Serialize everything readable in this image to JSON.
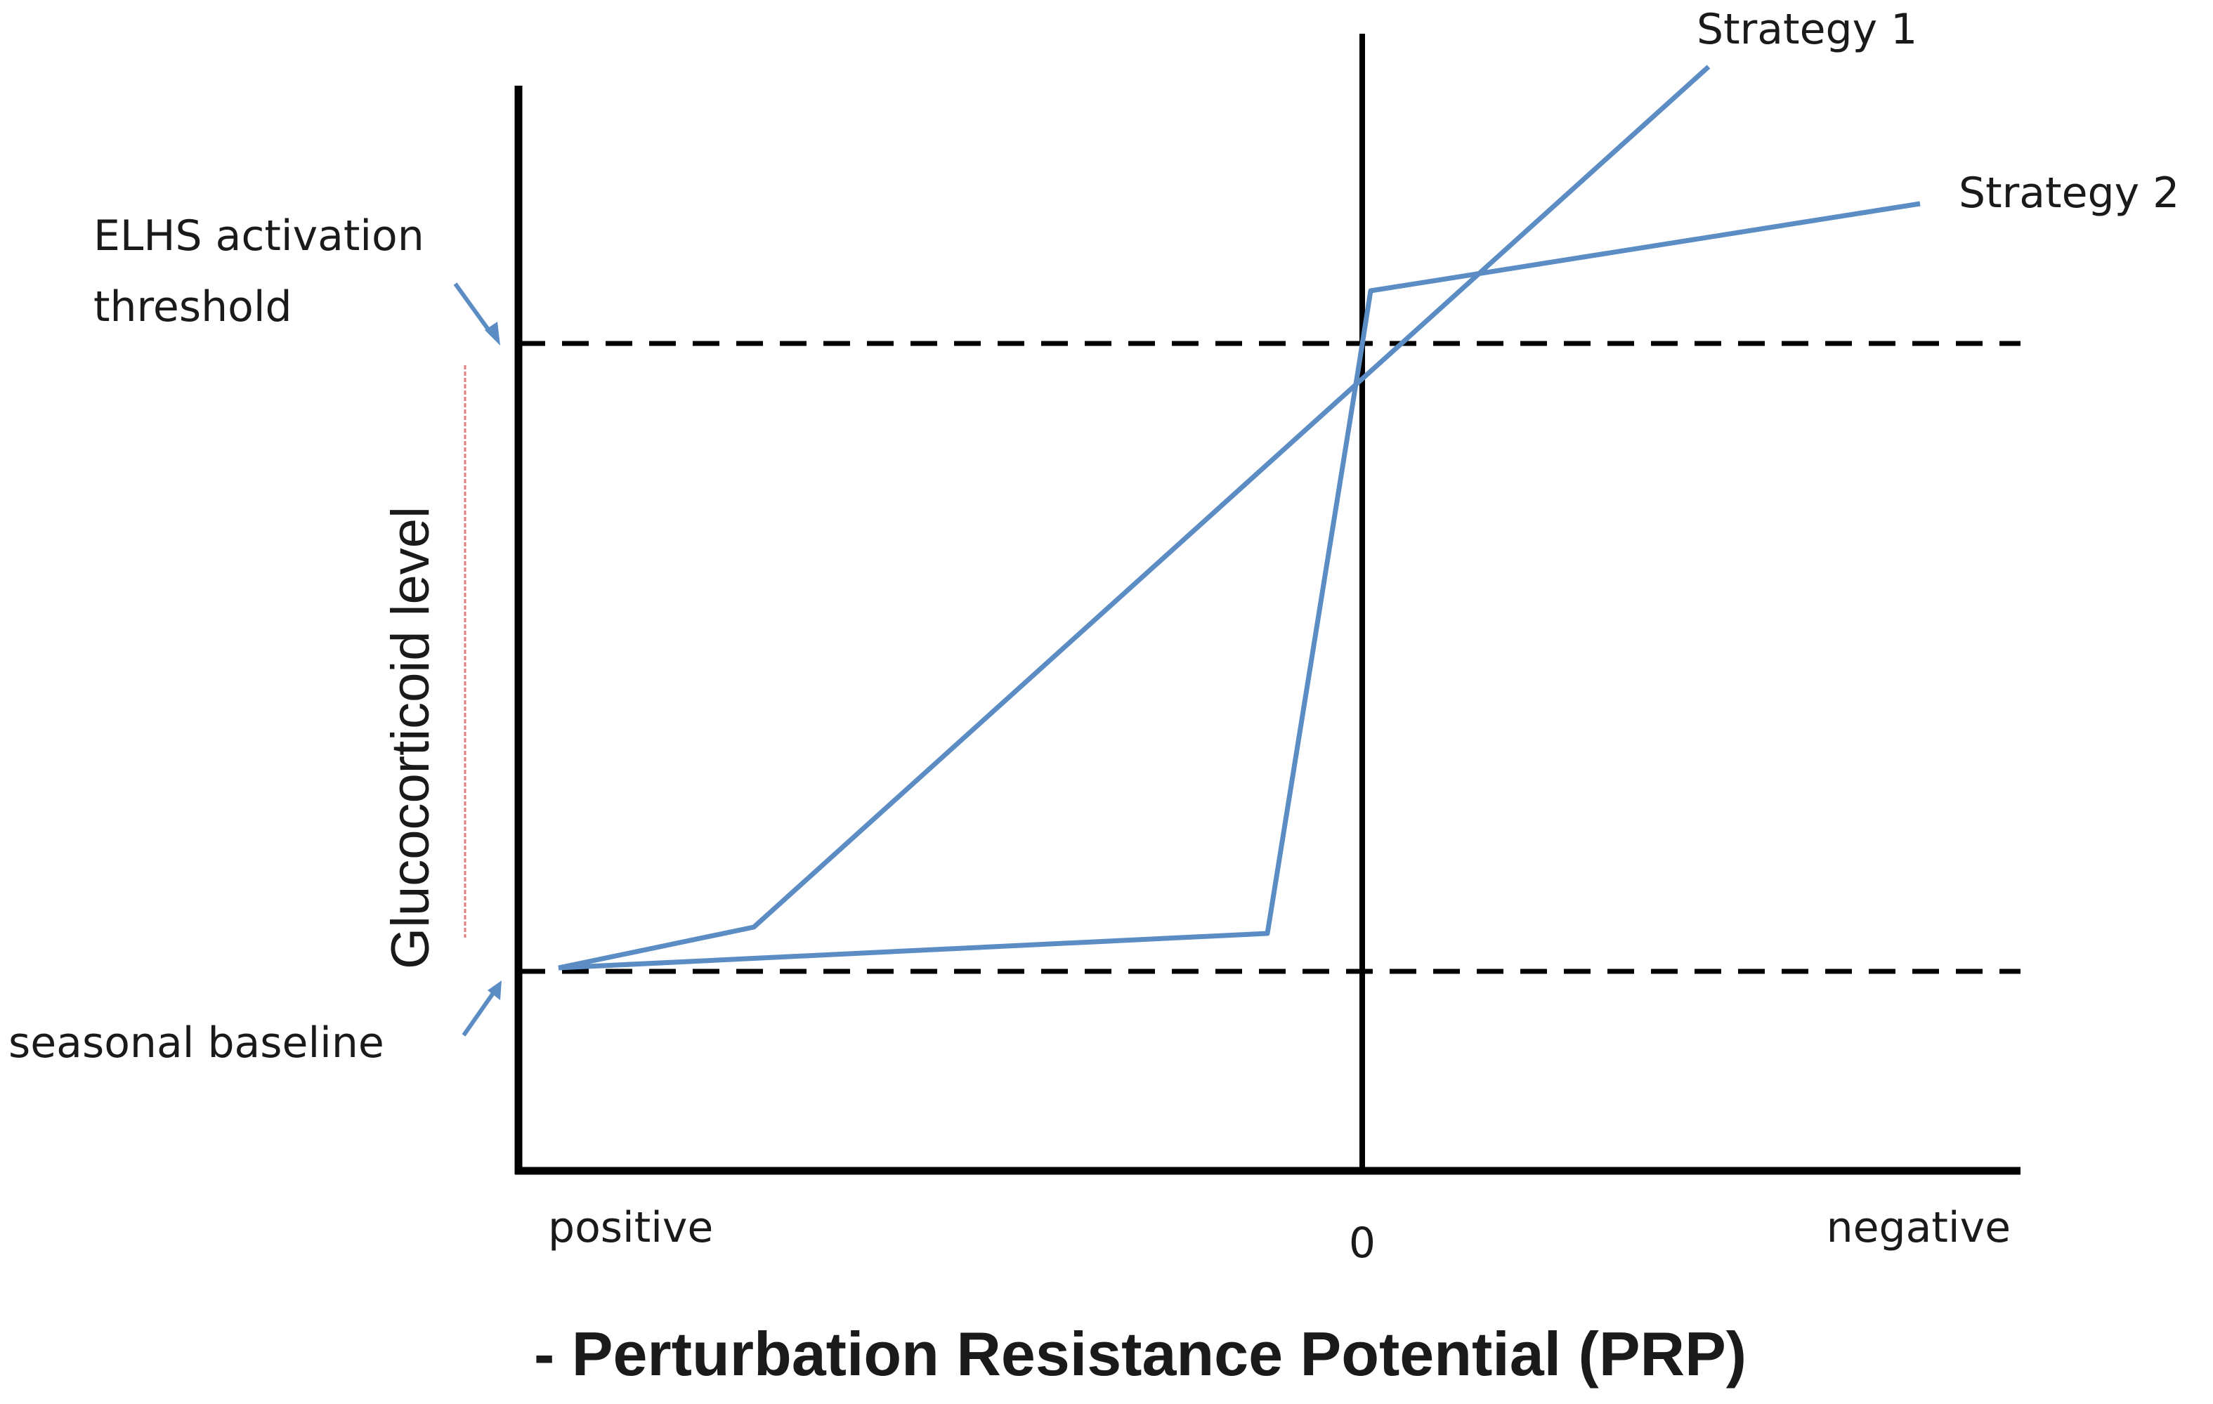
{
  "figure": {
    "y_axis_label": "Glucocorticoid level",
    "x_axis_label": "- Perturbation Resistance Potential (PRP)",
    "x_tick_left": "positive",
    "x_tick_zero": "0",
    "x_tick_right": "negative",
    "threshold_label_line1": "ELHS activation",
    "threshold_label_line2": "threshold",
    "baseline_label": "seasonal baseline",
    "strategy1_label": "Strategy 1",
    "strategy2_label": "Strategy 2",
    "colors": {
      "axis": "#000000",
      "curves": "#5b8dc4",
      "arrows": "#5b8dc4",
      "range_marker": "#e08080"
    }
  }
}
